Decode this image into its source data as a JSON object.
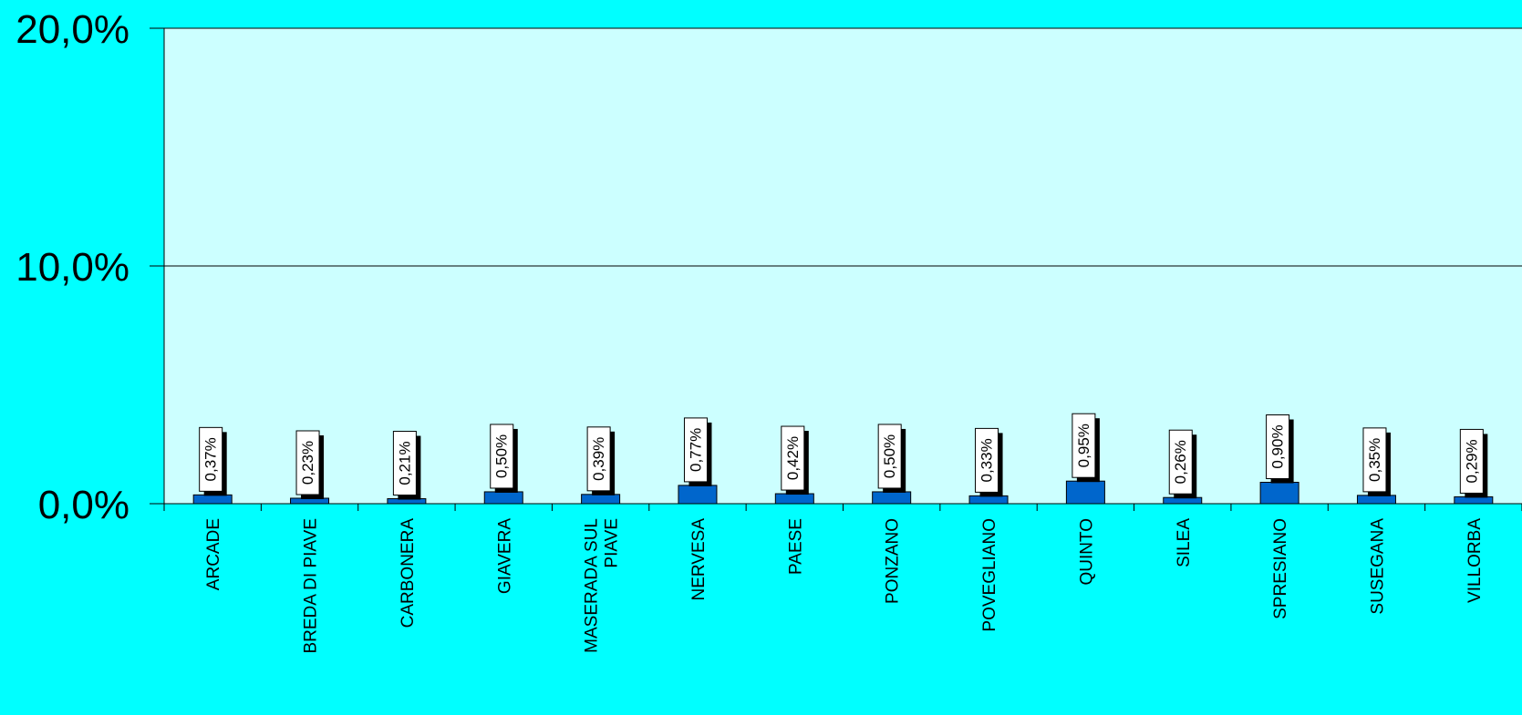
{
  "chart_data": {
    "type": "bar",
    "categories": [
      "ARCADE",
      "BREDA DI PIAVE",
      "CARBONERA",
      "GIAVERA",
      "MASERADA SUL PIAVE",
      "NERVESA",
      "PAESE",
      "PONZANO",
      "POVEGLIANO",
      "QUINTO",
      "SILEA",
      "SPRESIANO",
      "SUSEGANA",
      "VILLORBA"
    ],
    "category_lines": [
      [
        "ARCADE"
      ],
      [
        "BREDA DI PIAVE"
      ],
      [
        "CARBONERA"
      ],
      [
        "GIAVERA"
      ],
      [
        "MASERADA  SUL",
        "PIAVE"
      ],
      [
        "NERVESA"
      ],
      [
        "PAESE"
      ],
      [
        "PONZANO"
      ],
      [
        "POVEGLIANO"
      ],
      [
        "QUINTO"
      ],
      [
        "SILEA"
      ],
      [
        "SPRESIANO"
      ],
      [
        "SUSEGANA"
      ],
      [
        "VILLORBA"
      ]
    ],
    "values": [
      0.37,
      0.23,
      0.21,
      0.5,
      0.39,
      0.77,
      0.42,
      0.5,
      0.33,
      0.95,
      0.26,
      0.9,
      0.35,
      0.29
    ],
    "data_labels": [
      "0,37%",
      "0,23%",
      "0,21%",
      "0,50%",
      "0,39%",
      "0,77%",
      "0,42%",
      "0,50%",
      "0,33%",
      "0,95%",
      "0,26%",
      "0,90%",
      "0,35%",
      "0,29%"
    ],
    "ylim": [
      0,
      20
    ],
    "y_ticks": [
      0,
      10,
      20
    ],
    "y_tick_labels": [
      "0,0%",
      "10,0%",
      "20,0%"
    ],
    "grid": true,
    "legend": "none",
    "colors": {
      "page_background": "#00ffff",
      "plot_background": "#ccffff",
      "bar": "#0066cc",
      "label_box": "#ffffff",
      "label_shadow": "#000000",
      "axis": "#000000"
    }
  }
}
